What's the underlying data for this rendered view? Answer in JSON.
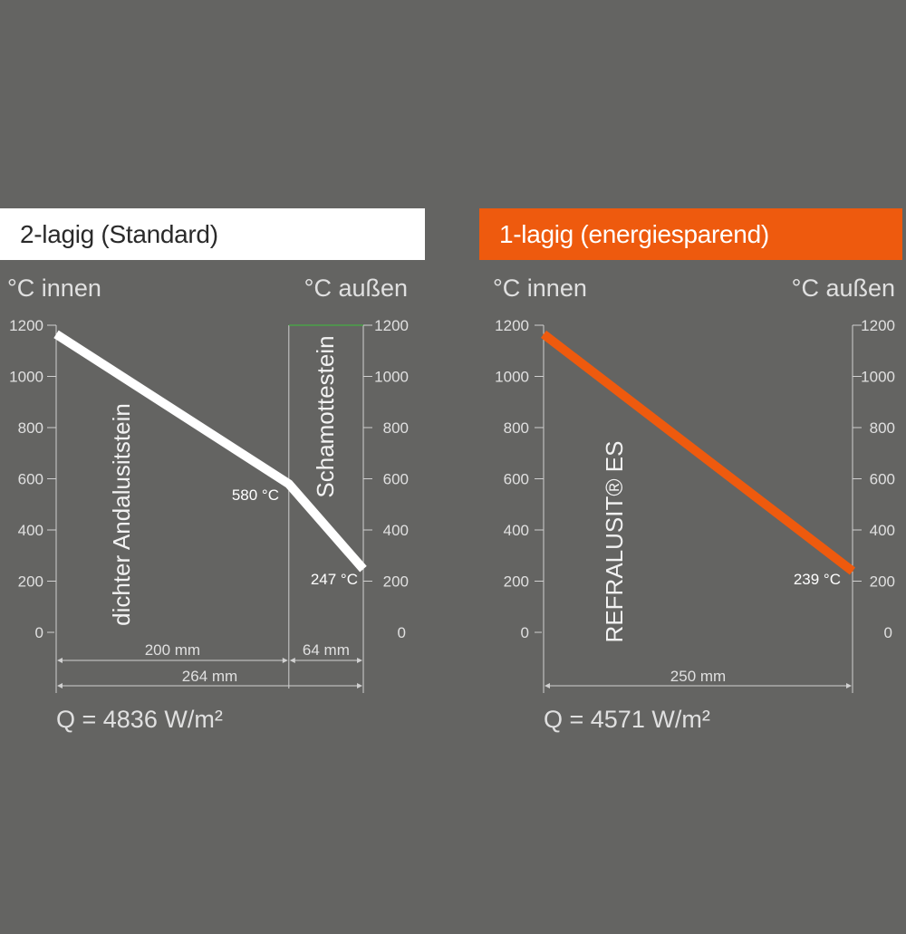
{
  "headers": {
    "left": "2-lagig (Standard)",
    "right": "1-lagig (energiesparend)"
  },
  "colors": {
    "background": "#646462",
    "axis": "#d0d0d0",
    "standard_line": "#ffffff",
    "energy_line": "#ee5a0e",
    "accent": "#ee5a0e",
    "green_top": "#3bbf3b"
  },
  "chart_data": [
    {
      "type": "line",
      "title": "2-lagig (Standard)",
      "ylabel_left": "°C innen",
      "ylabel_right": "°C außen",
      "ylim": [
        0,
        1200
      ],
      "yticks": [
        0,
        200,
        400,
        600,
        800,
        1000,
        1200
      ],
      "x_unit": "mm",
      "series": [
        {
          "x": [
            0,
            200,
            264
          ],
          "y": [
            1165,
            580,
            247
          ]
        }
      ],
      "point_labels": [
        "580 °C",
        "247 °C"
      ],
      "layers": [
        {
          "name": "dichter Andalusitstein",
          "thickness": 200,
          "thickness_label": "200 mm"
        },
        {
          "name": "Schamottestein",
          "thickness": 64,
          "thickness_label": "64 mm"
        }
      ],
      "total_label": "264 mm",
      "q_label": "Q = 4836 W/m²"
    },
    {
      "type": "line",
      "title": "1-lagig (energiesparend)",
      "ylabel_left": "°C innen",
      "ylabel_right": "°C außen",
      "ylim": [
        0,
        1200
      ],
      "yticks": [
        0,
        200,
        400,
        600,
        800,
        1000,
        1200
      ],
      "x_unit": "mm",
      "series": [
        {
          "x": [
            0,
            250
          ],
          "y": [
            1165,
            239
          ]
        }
      ],
      "point_labels": [
        "239 °C"
      ],
      "layers": [
        {
          "name": "REFRALUSIT® ES",
          "thickness": 250
        }
      ],
      "total_label": "250 mm",
      "q_label": "Q = 4571 W/m²"
    }
  ]
}
